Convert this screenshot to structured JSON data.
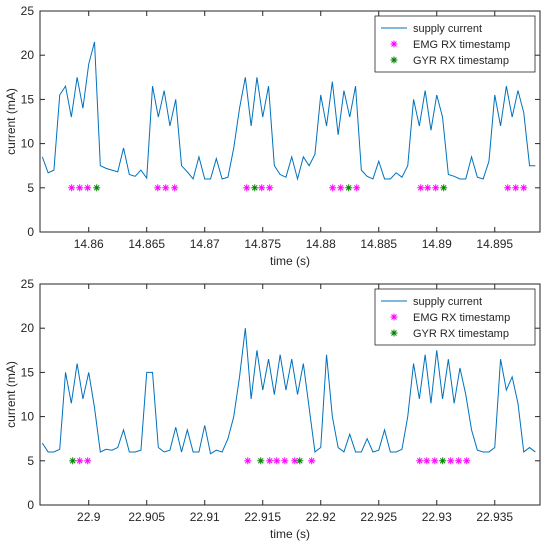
{
  "chart_data": [
    {
      "type": "line",
      "xlabel": "time (s)",
      "ylabel": "current (mA)",
      "xlim": [
        14.8558,
        14.8989
      ],
      "ylim": [
        0,
        25
      ],
      "xticks": [
        14.86,
        14.865,
        14.87,
        14.875,
        14.88,
        14.885,
        14.89,
        14.895
      ],
      "yticks": [
        0,
        5,
        10,
        15,
        20,
        25
      ],
      "legend": "upper right",
      "box": true,
      "series": [
        {
          "name": "supply current",
          "color": "#0072bd",
          "style": "line",
          "x": [
            14.856,
            14.8565,
            14.857,
            14.8575,
            14.858,
            14.8585,
            14.859,
            14.8595,
            14.86,
            14.8605,
            14.861,
            14.8615,
            14.862,
            14.8625,
            14.863,
            14.8635,
            14.864,
            14.8645,
            14.865,
            14.8655,
            14.866,
            14.8665,
            14.867,
            14.8675,
            14.868,
            14.8685,
            14.869,
            14.8695,
            14.87,
            14.8705,
            14.871,
            14.8715,
            14.872,
            14.8725,
            14.873,
            14.8735,
            14.874,
            14.8745,
            14.875,
            14.8755,
            14.876,
            14.8765,
            14.877,
            14.8775,
            14.878,
            14.8785,
            14.879,
            14.8795,
            14.88,
            14.8805,
            14.881,
            14.8815,
            14.882,
            14.8825,
            14.883,
            14.8835,
            14.884,
            14.8845,
            14.885,
            14.8855,
            14.886,
            14.8865,
            14.887,
            14.8875,
            14.888,
            14.8885,
            14.889,
            14.8895,
            14.89,
            14.8905,
            14.891,
            14.8915,
            14.892,
            14.8925,
            14.893,
            14.8935,
            14.894,
            14.8945,
            14.895,
            14.8955,
            14.896,
            14.8965,
            14.897,
            14.8975,
            14.898,
            14.8985
          ],
          "values": [
            8.5,
            6.7,
            7,
            15.5,
            16.5,
            13,
            17.5,
            14,
            19,
            21.5,
            7.5,
            7.2,
            7,
            6.8,
            9.5,
            6.5,
            6.3,
            7,
            6.1,
            16.5,
            13,
            16,
            12,
            15,
            7.5,
            6.8,
            6,
            8.5,
            6,
            6,
            8.3,
            6,
            6.2,
            9.5,
            14,
            17.5,
            12,
            17.5,
            13,
            16.5,
            7.5,
            6.5,
            6.2,
            8.5,
            6,
            8.5,
            7.5,
            8.8,
            15.5,
            12,
            17,
            11,
            16,
            13,
            16.5,
            7,
            6.3,
            6,
            8,
            6,
            6,
            6.7,
            6.2,
            7.5,
            15,
            12,
            16,
            11.5,
            15.5,
            13,
            6.5,
            6.3,
            6,
            6,
            8.5,
            6.2,
            6,
            8,
            15.5,
            12,
            16.5,
            13,
            16,
            13.5,
            7.5,
            7.5
          ]
        },
        {
          "name": "EMG RX timestamp",
          "color": "#ff00ff",
          "style": "asterisk",
          "x": [
            14.85853,
            14.85922,
            14.85991,
            14.86595,
            14.86664,
            14.86741,
            14.87362,
            14.87491,
            14.8756,
            14.88103,
            14.88172,
            14.8831,
            14.88862,
            14.88922,
            14.88991,
            14.89612,
            14.89681,
            14.8975
          ],
          "values": [
            5,
            5,
            5,
            5,
            5,
            5,
            5,
            5,
            5,
            5,
            5,
            5,
            5,
            5,
            5,
            5,
            5,
            5
          ]
        },
        {
          "name": "GYR RX timestamp",
          "color": "#008000",
          "style": "asterisk",
          "x": [
            14.86069,
            14.87431,
            14.88241,
            14.8906
          ],
          "values": [
            5,
            5,
            5,
            5
          ]
        }
      ]
    },
    {
      "type": "line",
      "xlabel": "time (s)",
      "ylabel": "current (mA)",
      "xlim": [
        22.8958,
        22.9389
      ],
      "ylim": [
        0,
        25
      ],
      "xticks": [
        22.9,
        22.905,
        22.91,
        22.915,
        22.92,
        22.925,
        22.93,
        22.935
      ],
      "yticks": [
        0,
        5,
        10,
        15,
        20,
        25
      ],
      "legend": "upper right",
      "box": true,
      "series": [
        {
          "name": "supply current",
          "color": "#0072bd",
          "style": "line",
          "x": [
            22.896,
            22.8965,
            22.897,
            22.8975,
            22.898,
            22.8985,
            22.899,
            22.8995,
            22.9,
            22.9005,
            22.901,
            22.9015,
            22.902,
            22.9025,
            22.903,
            22.9035,
            22.904,
            22.9045,
            22.905,
            22.9055,
            22.906,
            22.9065,
            22.907,
            22.9075,
            22.908,
            22.9085,
            22.909,
            22.9095,
            22.91,
            22.9105,
            22.911,
            22.9115,
            22.912,
            22.9125,
            22.913,
            22.9135,
            22.914,
            22.9145,
            22.915,
            22.9155,
            22.916,
            22.9165,
            22.917,
            22.9175,
            22.918,
            22.9185,
            22.919,
            22.9195,
            22.92,
            22.9205,
            22.921,
            22.9215,
            22.922,
            22.9225,
            22.923,
            22.9235,
            22.924,
            22.9245,
            22.925,
            22.9255,
            22.926,
            22.9265,
            22.927,
            22.9275,
            22.928,
            22.9285,
            22.929,
            22.9295,
            22.93,
            22.9305,
            22.931,
            22.9315,
            22.932,
            22.9325,
            22.933,
            22.9335,
            22.934,
            22.9345,
            22.935,
            22.9355,
            22.936,
            22.9365,
            22.937,
            22.9375,
            22.938,
            22.9385
          ],
          "values": [
            7,
            6,
            6,
            6.3,
            15,
            11.5,
            16,
            12,
            15,
            11,
            6,
            6.3,
            6.2,
            6.5,
            8.5,
            6,
            6,
            6.2,
            15,
            15,
            6.5,
            6,
            6.2,
            8.8,
            6,
            8.5,
            6,
            6,
            9,
            5.8,
            6.2,
            6,
            7.5,
            10,
            14.5,
            20,
            12,
            17.5,
            13,
            16.5,
            12.5,
            17,
            13,
            16.5,
            12.5,
            16,
            11,
            6,
            6.5,
            17,
            10,
            6.5,
            6,
            8,
            6,
            6,
            7.5,
            6,
            6.2,
            8.5,
            6,
            6,
            6.3,
            10,
            16,
            12,
            17,
            11.5,
            17.5,
            12,
            16.5,
            11.5,
            15.5,
            12.5,
            8.5,
            6.2,
            6,
            6,
            6.5,
            16.5,
            13,
            14.5,
            11.5,
            6,
            6.5,
            6
          ]
        },
        {
          "name": "EMG RX timestamp",
          "color": "#ff00ff",
          "style": "asterisk",
          "x": [
            22.89922,
            22.89991,
            22.91371,
            22.9156,
            22.91621,
            22.9169,
            22.91776,
            22.91922,
            22.92853,
            22.92914,
            22.92983,
            22.9312,
            22.93189,
            22.93258
          ],
          "values": [
            5,
            5,
            5,
            5,
            5,
            5,
            5,
            5,
            5,
            5,
            5,
            5,
            5,
            5
          ]
        },
        {
          "name": "GYR RX timestamp",
          "color": "#008000",
          "style": "asterisk",
          "x": [
            22.89862,
            22.91483,
            22.91819,
            22.93051
          ],
          "values": [
            5,
            5,
            5,
            5
          ]
        }
      ]
    }
  ]
}
